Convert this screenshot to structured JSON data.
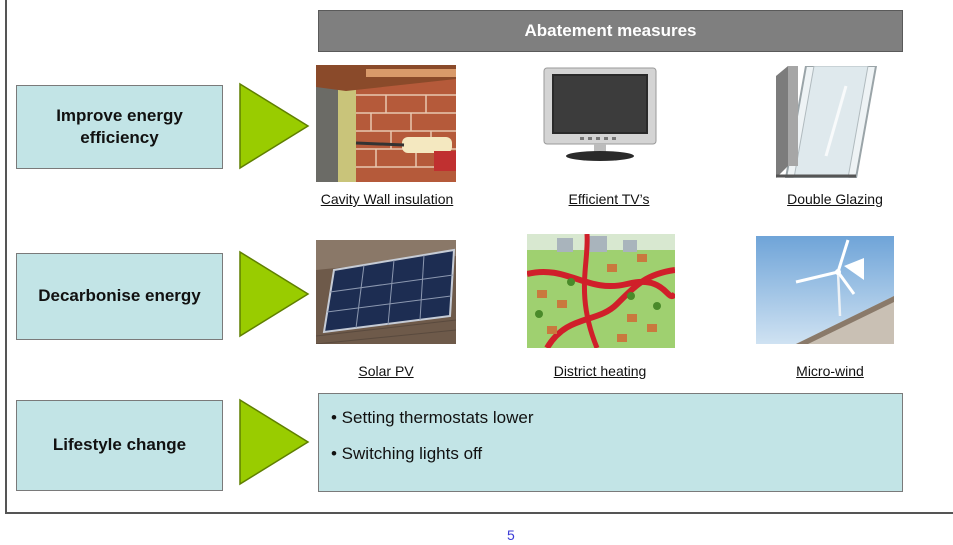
{
  "header": {
    "title": "Abatement measures"
  },
  "rows": [
    {
      "category": "Improve energy efficiency",
      "measures": [
        "Cavity Wall insulation",
        "Efficient TV’s",
        "Double Glazing"
      ]
    },
    {
      "category": "Decarbonise energy",
      "measures": [
        "Solar PV",
        "District heating",
        "Micro-wind"
      ]
    },
    {
      "category": "Lifestyle change",
      "bullets": [
        "• Setting thermostats lower",
        "• Switching lights off"
      ]
    }
  ],
  "colors": {
    "box_fill": "#c2e4e6",
    "arrow": "#99cc00",
    "header_fill": "#7f7f7f"
  },
  "page_number": "5"
}
